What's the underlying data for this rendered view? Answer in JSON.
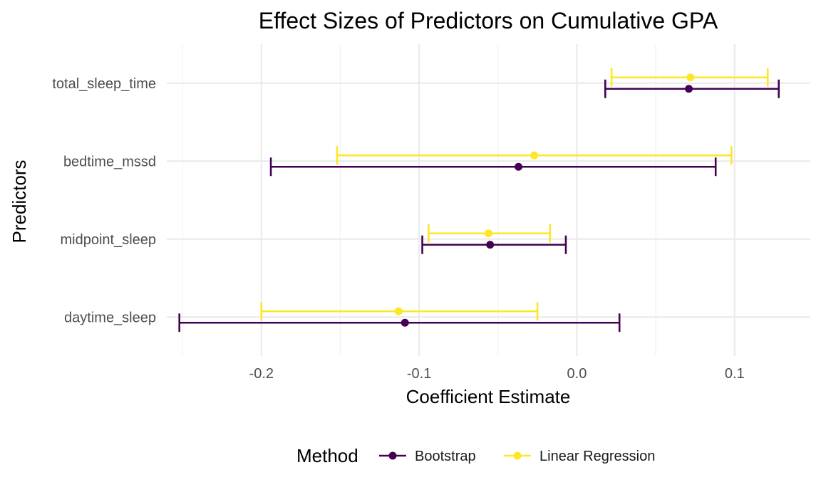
{
  "chart_data": {
    "type": "errorbar",
    "title": "Effect Sizes of Predictors on Cumulative GPA",
    "xlabel": "Coefficient Estimate",
    "ylabel": "Predictors",
    "xlim": [
      -0.26,
      0.148
    ],
    "x_ticks": [
      -0.2,
      -0.1,
      0.0,
      0.1
    ],
    "x_tick_labels": [
      "-0.2",
      "-0.1",
      "0.0",
      "0.1"
    ],
    "categories": [
      "total_sleep_time",
      "bedtime_mssd",
      "midpoint_sleep",
      "daytime_sleep"
    ],
    "grid": true,
    "legend": {
      "title": "Method",
      "position": "bottom"
    },
    "series": [
      {
        "name": "Bootstrap",
        "color": "#440154",
        "points": [
          {
            "category": "total_sleep_time",
            "estimate": 0.071,
            "lower": 0.018,
            "upper": 0.128
          },
          {
            "category": "bedtime_mssd",
            "estimate": -0.037,
            "lower": -0.194,
            "upper": 0.088
          },
          {
            "category": "midpoint_sleep",
            "estimate": -0.055,
            "lower": -0.098,
            "upper": -0.007
          },
          {
            "category": "daytime_sleep",
            "estimate": -0.109,
            "lower": -0.252,
            "upper": 0.027
          }
        ]
      },
      {
        "name": "Linear Regression",
        "color": "#FDE725",
        "points": [
          {
            "category": "total_sleep_time",
            "estimate": 0.072,
            "lower": 0.022,
            "upper": 0.121
          },
          {
            "category": "bedtime_mssd",
            "estimate": -0.027,
            "lower": -0.152,
            "upper": 0.098
          },
          {
            "category": "midpoint_sleep",
            "estimate": -0.056,
            "lower": -0.094,
            "upper": -0.017
          },
          {
            "category": "daytime_sleep",
            "estimate": -0.113,
            "lower": -0.2,
            "upper": -0.025
          }
        ]
      }
    ]
  }
}
